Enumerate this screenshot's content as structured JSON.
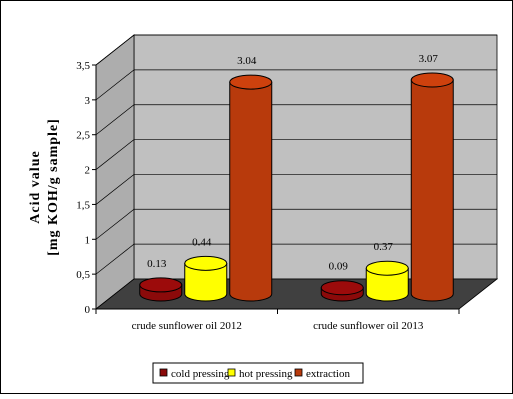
{
  "chart_data": {
    "type": "bar",
    "ylabel_line1": "Acid value",
    "ylabel_line2": "[mg KOH/g sample]",
    "categories": [
      "crude sunflower oil 2012",
      "crude sunflower oil 2013"
    ],
    "ylim": [
      0,
      3.5
    ],
    "yticks": [
      0,
      0.5,
      1,
      1.5,
      2,
      2.5,
      3,
      3.5
    ],
    "ytick_labels": [
      "0",
      "0,5",
      "1",
      "1,5",
      "2",
      "2,5",
      "3",
      "3,5"
    ],
    "grid": true,
    "legend_position": "bottom",
    "series": [
      {
        "name": "cold pressing",
        "color": "#8b0a0a",
        "values": [
          0.13,
          0.09
        ],
        "labels": [
          "0.13",
          "0.09"
        ]
      },
      {
        "name": "hot pressing",
        "color": "#ffff00",
        "values": [
          0.44,
          0.37
        ],
        "labels": [
          "0.44",
          "0.37"
        ]
      },
      {
        "name": "extraction",
        "color": "#b83a0c",
        "values": [
          3.04,
          3.07
        ],
        "labels": [
          "3.04",
          "3.07"
        ]
      }
    ],
    "colors": {
      "wall": "#c0c0c0",
      "floor": "#404040"
    }
  }
}
